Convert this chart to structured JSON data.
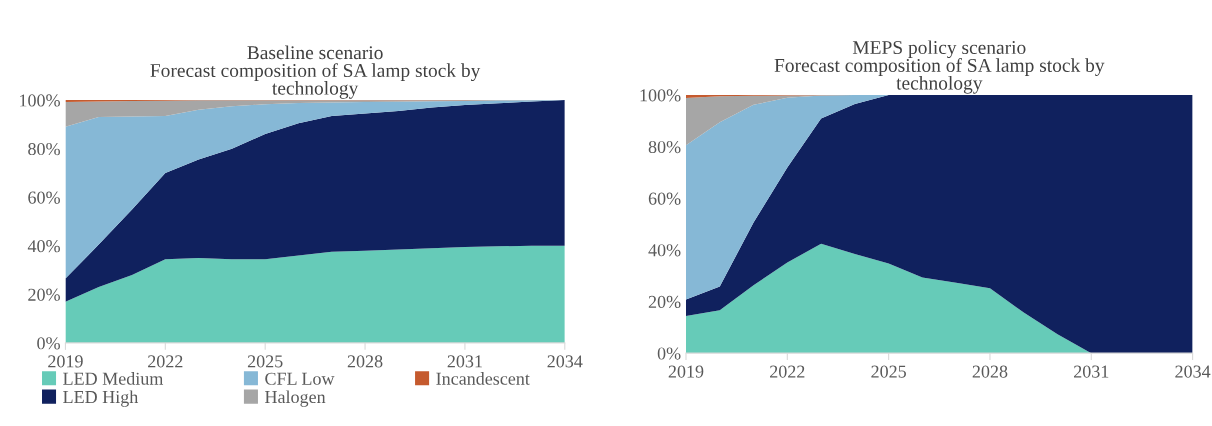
{
  "chart_data": [
    {
      "type": "area",
      "stacked": true,
      "title": "Baseline scenario",
      "subtitle": "Forecast composition of SA lamp stock by\ntechnology",
      "x": [
        2019,
        2020,
        2021,
        2022,
        2023,
        2024,
        2025,
        2026,
        2027,
        2028,
        2029,
        2030,
        2031,
        2032,
        2033,
        2034
      ],
      "series": [
        {
          "name": "LED Medium",
          "color": "#66cbb8",
          "values": [
            17,
            23,
            28,
            34.5,
            35,
            34.5,
            34.5,
            36,
            37.5,
            38,
            38.5,
            39,
            39.5,
            39.8,
            40,
            40
          ]
        },
        {
          "name": "LED High",
          "color": "#10215e",
          "values": [
            9.5,
            17.5,
            27,
            35.5,
            40.5,
            45.5,
            51.5,
            54.5,
            56,
            56.5,
            57,
            58,
            58.5,
            58.9,
            59.4,
            60
          ]
        },
        {
          "name": "CFL Low",
          "color": "#86b8d6",
          "values": [
            62.5,
            52.5,
            38.2,
            23.5,
            20.5,
            17.5,
            12.3,
            8.3,
            5.5,
            4.7,
            3.8,
            2.5,
            1.6,
            1.1,
            0.5,
            0
          ]
        },
        {
          "name": "Halogen",
          "color": "#a6a6a6",
          "values": [
            10.2,
            6.4,
            6.4,
            6.2,
            3.9,
            2.4,
            1.6,
            1.1,
            0.9,
            0.7,
            0.6,
            0.4,
            0.3,
            0.2,
            0.1,
            0
          ]
        },
        {
          "name": "Incandescent",
          "color": "#c55a2e",
          "values": [
            0.8,
            0.6,
            0.4,
            0.3,
            0.1,
            0.1,
            0.1,
            0.1,
            0.1,
            0.1,
            0.1,
            0.1,
            0.1,
            0,
            0,
            0
          ]
        }
      ],
      "xlim": [
        2019,
        2034
      ],
      "xticks": [
        2019,
        2022,
        2025,
        2028,
        2031,
        2034
      ],
      "ylim": [
        0,
        100
      ],
      "yticks": [
        {
          "value": 0,
          "label": "0%"
        },
        {
          "value": 20,
          "label": "20%"
        },
        {
          "value": 40,
          "label": "40%"
        },
        {
          "value": 60,
          "label": "60%"
        },
        {
          "value": 80,
          "label": "80%"
        },
        {
          "value": 100,
          "label": "100%"
        }
      ],
      "grid": false,
      "legend": "bottom"
    },
    {
      "type": "area",
      "stacked": true,
      "title": "MEPS policy scenario",
      "subtitle": "Forecast composition of SA lamp stock by\ntechnology",
      "x": [
        2019,
        2020,
        2021,
        2022,
        2023,
        2024,
        2025,
        2026,
        2027,
        2028,
        2029,
        2030,
        2031,
        2032,
        2033,
        2034
      ],
      "series": [
        {
          "color": "#66cbb8",
          "values": [
            14.4,
            16.6,
            26.3,
            35.1,
            42.4,
            38.4,
            34.7,
            29.3,
            27.3,
            25.1,
            15.7,
            7.3,
            0,
            0,
            0,
            0
          ]
        },
        {
          "color": "#10215e",
          "values": [
            6.4,
            9.2,
            24.3,
            36.8,
            48.5,
            58.1,
            65.3,
            70.7,
            72.7,
            74.9,
            84.3,
            92.7,
            100,
            100,
            100,
            100
          ]
        },
        {
          "color": "#86b8d6",
          "values": [
            59.7,
            63.6,
            45.6,
            27,
            8.9,
            3.5,
            0,
            0,
            0,
            0,
            0,
            0,
            0,
            0,
            0,
            0
          ]
        },
        {
          "color": "#a6a6a6",
          "values": [
            18.3,
            10.1,
            3.5,
            0.9,
            0.1,
            0,
            0,
            0,
            0,
            0,
            0,
            0,
            0,
            0,
            0,
            0
          ]
        },
        {
          "color": "#c55a2e",
          "values": [
            1.2,
            0.5,
            0.3,
            0.2,
            0.1,
            0,
            0,
            0,
            0,
            0,
            0,
            0,
            0,
            0,
            0,
            0
          ]
        }
      ],
      "xlim": [
        2019,
        2034
      ],
      "xticks": [
        2019,
        2022,
        2025,
        2028,
        2031,
        2034
      ],
      "ylim": [
        0,
        100
      ],
      "yticks": [
        {
          "value": 0,
          "label": "0%"
        },
        {
          "value": 20,
          "label": "20%"
        },
        {
          "value": 40,
          "label": "40%"
        },
        {
          "value": 60,
          "label": "60%"
        },
        {
          "value": 80,
          "label": "80%"
        },
        {
          "value": 100,
          "label": "100%"
        }
      ],
      "grid": false
    }
  ]
}
